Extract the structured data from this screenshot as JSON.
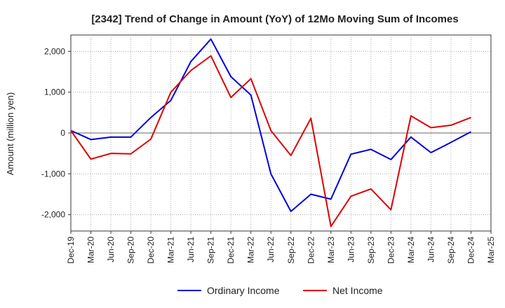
{
  "chart_data": {
    "type": "line",
    "title": "[2342]  Trend of Change in Amount (YoY) of 12Mo Moving Sum of Incomes",
    "ylabel": "Amount (million yen)",
    "xlabel": "",
    "ylim": [
      -2400,
      2400
    ],
    "yticks": [
      -2000,
      -1000,
      0,
      1000,
      2000
    ],
    "ytick_labels": [
      "-2,000",
      "-1,000",
      "0",
      "1,000",
      "2,000"
    ],
    "categories": [
      "Dec-19",
      "Mar-20",
      "Jun-20",
      "Sep-20",
      "Dec-20",
      "Mar-21",
      "Jun-21",
      "Sep-21",
      "Dec-21",
      "Mar-22",
      "Jun-22",
      "Sep-22",
      "Dec-22",
      "Mar-23",
      "Jun-23",
      "Sep-23",
      "Dec-23",
      "Mar-24",
      "Jun-24",
      "Sep-24",
      "Dec-24",
      "Mar-25"
    ],
    "xtick_labels": [
      "Dec-19",
      "Mar-20",
      "Jun-20",
      "Sep-20",
      "Dec-20",
      "Mar-21",
      "Jun-21",
      "Sep-21",
      "Dec-21",
      "Mar-22",
      "Jun-22",
      "Sep-22",
      "Dec-22",
      "Mar-23",
      "Jun-23",
      "Sep-23",
      "Dec-23",
      "Mar-24",
      "Jun-24",
      "Sep-24",
      "Dec-24",
      "Mar-25"
    ],
    "grid": true,
    "legend_position": "bottom-center",
    "series": [
      {
        "name": "Ordinary Income",
        "color": "#0000dd",
        "values": [
          60,
          -160,
          -100,
          -100,
          380,
          800,
          1750,
          2300,
          1380,
          930,
          -1000,
          -1920,
          -1500,
          -1620,
          -520,
          -400,
          -650,
          -100,
          -480,
          -230,
          30,
          null
        ]
      },
      {
        "name": "Net Income",
        "color": "#dd0000",
        "values": [
          60,
          -640,
          -500,
          -510,
          -150,
          1000,
          1530,
          1890,
          870,
          1330,
          60,
          -550,
          360,
          -2290,
          -1550,
          -1370,
          -1880,
          420,
          130,
          190,
          380,
          null
        ]
      }
    ]
  }
}
